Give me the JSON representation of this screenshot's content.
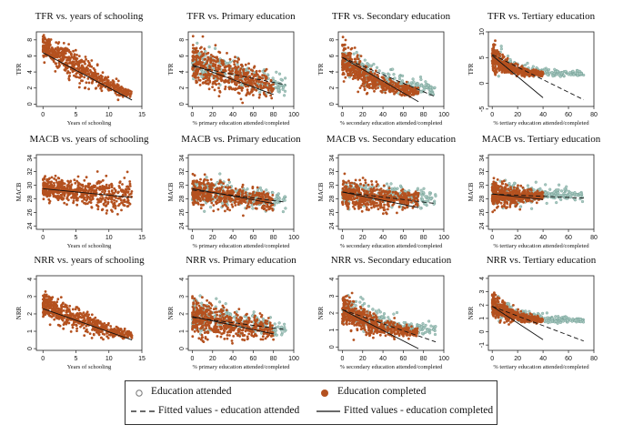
{
  "colors": {
    "completed": "#B4511F",
    "attended_fill": "#A9C9C1",
    "attended_edge": "#6E9C92",
    "line": "#111111"
  },
  "chart_data": [
    {
      "type": "scatter",
      "title": "TFR vs. years of schooling",
      "xlabel": "Years of schooling",
      "ylabel": "TFR",
      "xlim": [
        -1,
        15
      ],
      "ylim": [
        -0.3,
        9
      ],
      "xticks": [
        0,
        5,
        10,
        15
      ],
      "yticks": [
        0,
        2,
        4,
        6,
        8
      ],
      "attended": null,
      "completed": {
        "x": [
          0,
          4,
          8,
          12,
          13.5
        ],
        "y": [
          7.2,
          5.2,
          3.3,
          1.6,
          1.3
        ],
        "spread": [
          1.3,
          1.6,
          1.4,
          0.6,
          0.4
        ]
      },
      "fit_completed": {
        "x": [
          0,
          13.5
        ],
        "y": [
          6.4,
          0.5
        ]
      }
    },
    {
      "type": "scatter",
      "title": "TFR vs. Primary education",
      "xlabel": "% primary education attended/completed",
      "ylabel": "TFR",
      "xlim": [
        -4,
        100
      ],
      "ylim": [
        -0.3,
        9
      ],
      "xticks": [
        0,
        20,
        40,
        60,
        80,
        100
      ],
      "yticks": [
        0,
        2,
        4,
        6,
        8
      ],
      "attended": {
        "x": [
          0,
          30,
          60,
          92
        ],
        "y": [
          5.0,
          4.3,
          3.2,
          2.0
        ],
        "spread": [
          1.8,
          1.8,
          1.5,
          1.0
        ]
      },
      "completed": {
        "x": [
          0,
          30,
          60,
          80
        ],
        "y": [
          5.0,
          3.8,
          2.8,
          2.0
        ],
        "spread": [
          2.2,
          2.0,
          1.6,
          1.0
        ]
      },
      "fit_attended": {
        "x": [
          0,
          92
        ],
        "y": [
          4.7,
          2.4
        ]
      },
      "fit_completed": {
        "x": [
          0,
          80
        ],
        "y": [
          4.9,
          1.2
        ]
      }
    },
    {
      "type": "scatter",
      "title": "TFR vs. Secondary education",
      "xlabel": "% secondary education attended/completed",
      "ylabel": "TFR",
      "xlim": [
        -4,
        100
      ],
      "ylim": [
        -0.3,
        9
      ],
      "xticks": [
        0,
        20,
        40,
        60,
        80,
        100
      ],
      "yticks": [
        0,
        2,
        4,
        6,
        8
      ],
      "attended": {
        "x": [
          0,
          30,
          60,
          92
        ],
        "y": [
          5.5,
          3.6,
          2.4,
          1.7
        ],
        "spread": [
          1.8,
          1.4,
          1.0,
          0.6
        ]
      },
      "completed": {
        "x": [
          0,
          25,
          50,
          75
        ],
        "y": [
          5.5,
          3.2,
          2.0,
          1.6
        ],
        "spread": [
          2.0,
          1.3,
          0.8,
          0.5
        ]
      },
      "fit_attended": {
        "x": [
          0,
          92
        ],
        "y": [
          5.8,
          0.9
        ]
      },
      "fit_completed": {
        "x": [
          0,
          75
        ],
        "y": [
          5.8,
          0.3
        ]
      }
    },
    {
      "type": "scatter",
      "title": "TFR vs. Tertiary education",
      "xlabel": "% tertiary education attended/completed",
      "ylabel": "TFR",
      "xlim": [
        -3,
        80
      ],
      "ylim": [
        -4.5,
        10
      ],
      "xticks": [
        0,
        20,
        40,
        60,
        80
      ],
      "yticks": [
        -5,
        0,
        5,
        10
      ],
      "attended": {
        "x": [
          0,
          20,
          45,
          72
        ],
        "y": [
          5.0,
          3.0,
          2.0,
          1.8
        ],
        "spread": [
          1.8,
          1.0,
          0.6,
          0.4
        ]
      },
      "completed": {
        "x": [
          0,
          12,
          25,
          40
        ],
        "y": [
          5.0,
          3.2,
          2.2,
          1.8
        ],
        "spread": [
          2.0,
          1.2,
          0.7,
          0.4
        ]
      },
      "fit_attended": {
        "x": [
          0,
          72
        ],
        "y": [
          5.6,
          -3.2
        ]
      },
      "fit_completed": {
        "x": [
          0,
          40
        ],
        "y": [
          5.4,
          -2.8
        ]
      }
    },
    {
      "type": "scatter",
      "title": "MACB vs. years of schooling",
      "xlabel": "Years of schooling",
      "ylabel": "MACB",
      "xlim": [
        -1,
        15
      ],
      "ylim": [
        23.5,
        34.5
      ],
      "xticks": [
        0,
        5,
        10,
        15
      ],
      "yticks": [
        24,
        26,
        28,
        30,
        32,
        34
      ],
      "attended": null,
      "completed": {
        "x": [
          0,
          5,
          10,
          13.5
        ],
        "y": [
          29.6,
          29.1,
          28.6,
          28.6
        ],
        "spread": [
          1.3,
          1.7,
          2.1,
          2.2
        ]
      },
      "fit_completed": {
        "x": [
          0,
          13.5
        ],
        "y": [
          29.5,
          28.2
        ]
      }
    },
    {
      "type": "scatter",
      "title": "MACB vs. Primary education",
      "xlabel": "% primary education attended/completed",
      "ylabel": "MACB",
      "xlim": [
        -4,
        100
      ],
      "ylim": [
        23.5,
        34.5
      ],
      "xticks": [
        0,
        20,
        40,
        60,
        80,
        100
      ],
      "yticks": [
        24,
        26,
        28,
        30,
        32,
        34
      ],
      "attended": {
        "x": [
          0,
          30,
          60,
          92
        ],
        "y": [
          29.0,
          28.8,
          28.3,
          27.8
        ],
        "spread": [
          1.6,
          1.6,
          1.4,
          1.0
        ]
      },
      "completed": {
        "x": [
          0,
          30,
          60,
          80
        ],
        "y": [
          29.0,
          28.6,
          28.0,
          27.4
        ],
        "spread": [
          1.8,
          1.6,
          1.4,
          1.0
        ]
      },
      "fit_attended": {
        "x": [
          0,
          92
        ],
        "y": [
          29.3,
          27.5
        ]
      },
      "fit_completed": {
        "x": [
          0,
          80
        ],
        "y": [
          29.5,
          27.3
        ]
      }
    },
    {
      "type": "scatter",
      "title": "MACB vs. Secondary education",
      "xlabel": "% secondary education attended/completed",
      "ylabel": "MACB",
      "xlim": [
        -4,
        100
      ],
      "ylim": [
        23.5,
        34.5
      ],
      "xticks": [
        0,
        20,
        40,
        60,
        80,
        100
      ],
      "yticks": [
        24,
        26,
        28,
        30,
        32,
        34
      ],
      "attended": {
        "x": [
          0,
          30,
          60,
          92
        ],
        "y": [
          28.8,
          28.6,
          28.4,
          28.0
        ],
        "spread": [
          1.6,
          1.6,
          1.4,
          1.0
        ]
      },
      "completed": {
        "x": [
          0,
          25,
          50,
          75
        ],
        "y": [
          28.6,
          28.2,
          28.0,
          27.8
        ],
        "spread": [
          1.8,
          1.6,
          1.4,
          1.0
        ]
      },
      "fit_attended": {
        "x": [
          0,
          92
        ],
        "y": [
          29.0,
          27.3
        ]
      },
      "fit_completed": {
        "x": [
          0,
          75
        ],
        "y": [
          29.0,
          26.7
        ]
      }
    },
    {
      "type": "scatter",
      "title": "MACB vs. Tertiary education",
      "xlabel": "% tertiary education attended/completed",
      "ylabel": "MACB",
      "xlim": [
        -3,
        80
      ],
      "ylim": [
        23.5,
        34.5
      ],
      "xticks": [
        0,
        20,
        40,
        60,
        80
      ],
      "yticks": [
        24,
        26,
        28,
        30,
        32,
        34
      ],
      "attended": {
        "x": [
          0,
          20,
          45,
          72
        ],
        "y": [
          28.8,
          28.6,
          28.6,
          28.4
        ],
        "spread": [
          1.6,
          1.4,
          1.0,
          0.6
        ]
      },
      "completed": {
        "x": [
          0,
          12,
          25,
          40
        ],
        "y": [
          28.6,
          28.4,
          28.4,
          28.4
        ],
        "spread": [
          1.8,
          1.4,
          1.0,
          0.6
        ]
      },
      "fit_attended": {
        "x": [
          0,
          72
        ],
        "y": [
          28.7,
          28.1
        ]
      },
      "fit_completed": {
        "x": [
          0,
          40
        ],
        "y": [
          28.7,
          27.9
        ]
      }
    },
    {
      "type": "scatter",
      "title": "NRR vs. years of schooling",
      "xlabel": "Years of schooling",
      "ylabel": "NRR",
      "xlim": [
        -1,
        15
      ],
      "ylim": [
        -0.1,
        4.2
      ],
      "xticks": [
        0,
        5,
        10,
        15
      ],
      "yticks": [
        0,
        1,
        2,
        3,
        4
      ],
      "attended": null,
      "completed": {
        "x": [
          0,
          4,
          8,
          12,
          13.5
        ],
        "y": [
          2.5,
          1.9,
          1.3,
          0.85,
          0.75
        ],
        "spread": [
          0.6,
          0.6,
          0.5,
          0.25,
          0.15
        ]
      },
      "fit_completed": {
        "x": [
          0,
          13.5
        ],
        "y": [
          2.3,
          0.5
        ]
      }
    },
    {
      "type": "scatter",
      "title": "NRR vs. Primary education",
      "xlabel": "% primary education attended/completed",
      "ylabel": "NRR",
      "xlim": [
        -4,
        100
      ],
      "ylim": [
        -0.1,
        4.2
      ],
      "xticks": [
        0,
        20,
        40,
        60,
        80,
        100
      ],
      "yticks": [
        0,
        1,
        2,
        3,
        4
      ],
      "attended": {
        "x": [
          0,
          30,
          60,
          92
        ],
        "y": [
          2.0,
          1.7,
          1.4,
          1.1
        ],
        "spread": [
          0.8,
          0.7,
          0.6,
          0.4
        ]
      },
      "completed": {
        "x": [
          0,
          30,
          60,
          80
        ],
        "y": [
          1.9,
          1.5,
          1.2,
          1.0
        ],
        "spread": [
          0.9,
          0.8,
          0.6,
          0.4
        ]
      },
      "fit_attended": {
        "x": [
          0,
          92
        ],
        "y": [
          1.8,
          1.1
        ]
      },
      "fit_completed": {
        "x": [
          0,
          80
        ],
        "y": [
          1.85,
          0.85
        ]
      }
    },
    {
      "type": "scatter",
      "title": "NRR vs. Secondary education",
      "xlabel": "% secondary education attended/completed",
      "ylabel": "NRR",
      "xlim": [
        -4,
        100
      ],
      "ylim": [
        -0.2,
        4.2
      ],
      "xticks": [
        0,
        20,
        40,
        60,
        80,
        100
      ],
      "yticks": [
        0,
        1,
        2,
        3,
        4
      ],
      "attended": {
        "x": [
          0,
          30,
          60,
          92
        ],
        "y": [
          2.2,
          1.6,
          1.2,
          1.0
        ],
        "spread": [
          0.8,
          0.6,
          0.4,
          0.3
        ]
      },
      "completed": {
        "x": [
          0,
          25,
          50,
          75
        ],
        "y": [
          2.2,
          1.4,
          1.0,
          0.85
        ],
        "spread": [
          0.9,
          0.6,
          0.4,
          0.2
        ]
      },
      "fit_attended": {
        "x": [
          0,
          92
        ],
        "y": [
          2.2,
          0.3
        ]
      },
      "fit_completed": {
        "x": [
          0,
          75
        ],
        "y": [
          2.2,
          -0.1
        ]
      }
    },
    {
      "type": "scatter",
      "title": "NRR vs. Tertiary education",
      "xlabel": "% tertiary education attended/completed",
      "ylabel": "NRR",
      "xlim": [
        -3,
        80
      ],
      "ylim": [
        -1.4,
        4.2
      ],
      "xticks": [
        0,
        20,
        40,
        60,
        80
      ],
      "yticks": [
        -1,
        0,
        1,
        2,
        3,
        4
      ],
      "attended": {
        "x": [
          0,
          20,
          45,
          72
        ],
        "y": [
          2.0,
          1.3,
          0.9,
          0.85
        ],
        "spread": [
          0.8,
          0.4,
          0.25,
          0.15
        ]
      },
      "completed": {
        "x": [
          0,
          12,
          25,
          40
        ],
        "y": [
          2.0,
          1.3,
          1.0,
          0.85
        ],
        "spread": [
          0.9,
          0.5,
          0.3,
          0.15
        ]
      },
      "fit_attended": {
        "x": [
          0,
          72
        ],
        "y": [
          1.9,
          -0.7
        ]
      },
      "fit_completed": {
        "x": [
          0,
          40
        ],
        "y": [
          1.9,
          -0.6
        ]
      }
    }
  ],
  "legend": {
    "attended": "Education attended",
    "completed": "Education completed",
    "fit_attended": "Fitted values - education attended",
    "fit_completed": "Fitted values - education completed"
  }
}
